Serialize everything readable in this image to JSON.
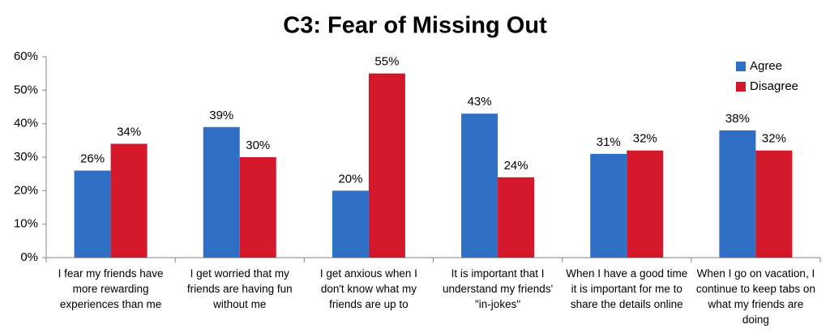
{
  "chart_data": {
    "type": "bar",
    "title": "C3:  Fear of Missing Out",
    "categories": [
      "I fear my friends have more rewarding experiences than me",
      "I get worried that my friends are having fun without me",
      "I get anxious when I don't know what my friends are up to",
      "It is important that I understand my friends' \"in-jokes\"",
      "When I have a good time it is important for me to share the details online",
      "When I go on vacation, I continue to keep tabs on what my friends are doing"
    ],
    "series": [
      {
        "name": "Agree",
        "color": "#2f6fc6",
        "values": [
          26,
          39,
          20,
          43,
          31,
          38
        ],
        "value_labels": [
          "26%",
          "39%",
          "20%",
          "43%",
          "31%",
          "38%"
        ]
      },
      {
        "name": "Disagree",
        "color": "#d4182c",
        "values": [
          34,
          30,
          55,
          24,
          32,
          32
        ],
        "value_labels": [
          "34%",
          "30%",
          "55%",
          "24%",
          "32%",
          "32%"
        ]
      }
    ],
    "ylim": [
      0,
      60
    ],
    "yticks": [
      {
        "value": 0,
        "label": "0%"
      },
      {
        "value": 10,
        "label": "10%"
      },
      {
        "value": 20,
        "label": "20%"
      },
      {
        "value": 30,
        "label": "30%"
      },
      {
        "value": 40,
        "label": "40%"
      },
      {
        "value": 50,
        "label": "50%"
      },
      {
        "value": 60,
        "label": "60%"
      }
    ],
    "grid": false,
    "legend": "top-right"
  }
}
